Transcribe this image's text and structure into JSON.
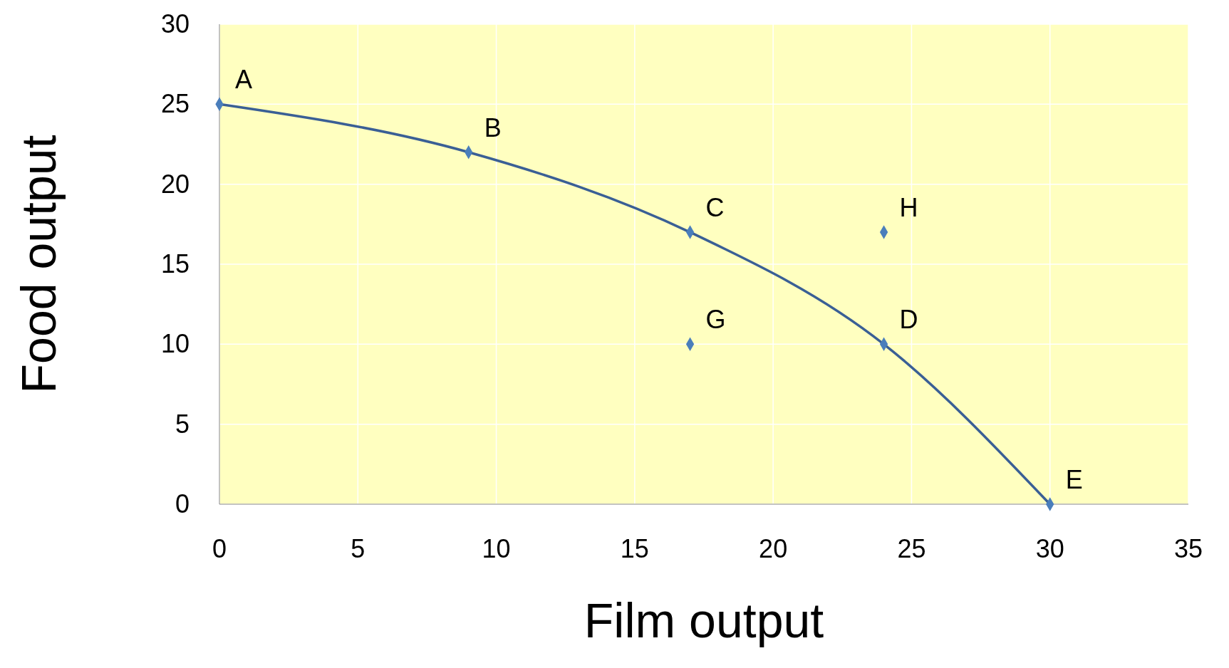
{
  "chart_data": {
    "type": "line",
    "xlabel": "Film output",
    "ylabel": "Food output",
    "xlim": [
      0,
      35
    ],
    "ylim": [
      0,
      30
    ],
    "xticks": [
      0,
      5,
      10,
      15,
      20,
      25,
      30,
      35
    ],
    "yticks": [
      0,
      5,
      10,
      15,
      20,
      25,
      30
    ],
    "grid": true,
    "marker": "diamond",
    "series": [
      {
        "color": "#3a5f95",
        "x": [
          0,
          9,
          17,
          24,
          30
        ],
        "values": [
          25,
          22,
          17,
          10,
          0
        ]
      },
      {
        "type": "scatter",
        "color": "#4a7ebb",
        "x": [
          17,
          24
        ],
        "values": [
          10,
          17
        ]
      }
    ],
    "annotations": [
      {
        "text": "A",
        "x": 0,
        "y": 25
      },
      {
        "text": "B",
        "x": 9,
        "y": 22
      },
      {
        "text": "C",
        "x": 17,
        "y": 17
      },
      {
        "text": "D",
        "x": 24,
        "y": 10
      },
      {
        "text": "E",
        "x": 30,
        "y": 0
      },
      {
        "text": "G",
        "x": 17,
        "y": 10
      },
      {
        "text": "H",
        "x": 24,
        "y": 17
      }
    ]
  }
}
